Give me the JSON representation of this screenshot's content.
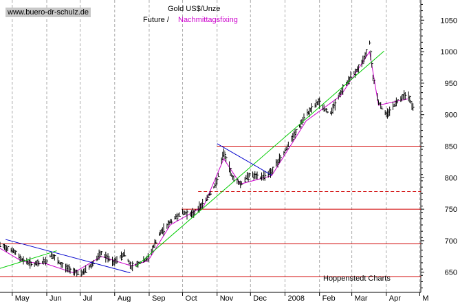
{
  "header": {
    "site": "www.buero-dr-schulz.de",
    "title": "Gold US$/Unze",
    "subtitle_black": "Future /",
    "subtitle_magenta": "Nachmittagsfixing",
    "source": "Hoppenstedt Charts"
  },
  "colors": {
    "bars": "#000000",
    "fixing": "#cc00cc",
    "support": "#d00000",
    "uptrend": "#00cc00",
    "downtrend": "#0000cc",
    "grid": "#aaaaaa"
  },
  "chart_data": {
    "type": "line",
    "y_ticks": [
      650,
      700,
      750,
      800,
      850,
      900,
      950,
      1000,
      1050
    ],
    "ylim": [
      618,
      1082
    ],
    "x_ticks": [
      "May",
      "Jun",
      "Jul",
      "Aug",
      "Sep",
      "Oct",
      "Nov",
      "Dec",
      "2008",
      "Feb",
      "Mar",
      "Apr",
      "M"
    ],
    "x_range": [
      "2007-04-20",
      "2008-05-02"
    ],
    "grid": true,
    "series": [
      {
        "name": "Future",
        "points": [
          [
            "2007-04-20",
            693
          ],
          [
            "2007-05-01",
            685
          ],
          [
            "2007-05-10",
            670
          ],
          [
            "2007-05-20",
            662
          ],
          [
            "2007-06-01",
            668
          ],
          [
            "2007-06-05",
            678
          ],
          [
            "2007-06-15",
            660
          ],
          [
            "2007-06-25",
            652
          ],
          [
            "2007-07-02",
            647
          ],
          [
            "2007-07-10",
            660
          ],
          [
            "2007-07-20",
            680
          ],
          [
            "2007-07-31",
            665
          ],
          [
            "2007-08-10",
            680
          ],
          [
            "2007-08-16",
            658
          ],
          [
            "2007-08-31",
            672
          ],
          [
            "2007-09-10",
            710
          ],
          [
            "2007-09-20",
            730
          ],
          [
            "2007-09-30",
            745
          ],
          [
            "2007-10-10",
            742
          ],
          [
            "2007-10-20",
            760
          ],
          [
            "2007-10-31",
            790
          ],
          [
            "2007-11-07",
            840
          ],
          [
            "2007-11-15",
            800
          ],
          [
            "2007-11-22",
            790
          ],
          [
            "2007-11-30",
            805
          ],
          [
            "2007-12-10",
            800
          ],
          [
            "2007-12-20",
            810
          ],
          [
            "2007-12-31",
            840
          ],
          [
            "2008-01-10",
            870
          ],
          [
            "2008-01-20",
            900
          ],
          [
            "2008-01-31",
            920
          ],
          [
            "2008-02-10",
            900
          ],
          [
            "2008-02-20",
            935
          ],
          [
            "2008-02-29",
            960
          ],
          [
            "2008-03-10",
            980
          ],
          [
            "2008-03-17",
            1015
          ],
          [
            "2008-03-20",
            960
          ],
          [
            "2008-03-25",
            920
          ],
          [
            "2008-04-01",
            900
          ],
          [
            "2008-04-10",
            920
          ],
          [
            "2008-04-20",
            935
          ],
          [
            "2008-04-25",
            910
          ]
        ]
      },
      {
        "name": "Nachmittagsfixing",
        "points": [
          [
            "2007-04-20",
            688
          ],
          [
            "2007-05-10",
            667
          ],
          [
            "2007-06-01",
            663
          ],
          [
            "2007-06-25",
            649
          ],
          [
            "2007-07-20",
            675
          ],
          [
            "2007-08-16",
            660
          ],
          [
            "2007-08-31",
            668
          ],
          [
            "2007-09-20",
            725
          ],
          [
            "2007-10-20",
            755
          ],
          [
            "2007-11-07",
            830
          ],
          [
            "2007-11-22",
            790
          ],
          [
            "2007-12-20",
            803
          ],
          [
            "2008-01-20",
            890
          ],
          [
            "2008-02-20",
            930
          ],
          [
            "2008-03-17",
            1000
          ],
          [
            "2008-03-25",
            915
          ],
          [
            "2008-04-20",
            925
          ]
        ]
      }
    ],
    "horizontal_lines": [
      {
        "value": 643,
        "style": "solid"
      },
      {
        "value": 695,
        "style": "solid"
      },
      {
        "value": 750,
        "style": "solid",
        "from": "2007-09-30"
      },
      {
        "value": 778,
        "style": "dashed",
        "from": "2007-10-15"
      },
      {
        "value": 850,
        "style": "solid",
        "from": "2007-11-01"
      }
    ],
    "trend_lines": [
      {
        "color": "uptrend",
        "from": [
          "2007-04-20",
          656
        ],
        "to": [
          "2007-06-10",
          684
        ]
      },
      {
        "color": "uptrend",
        "from": [
          "2007-08-20",
          659
        ],
        "to": [
          "2008-03-30",
          1001
        ]
      },
      {
        "color": "downtrend",
        "from": [
          "2007-04-25",
          702
        ],
        "to": [
          "2007-08-15",
          649
        ]
      },
      {
        "color": "downtrend",
        "from": [
          "2007-11-01",
          854
        ],
        "to": [
          "2007-12-20",
          804
        ]
      }
    ]
  }
}
